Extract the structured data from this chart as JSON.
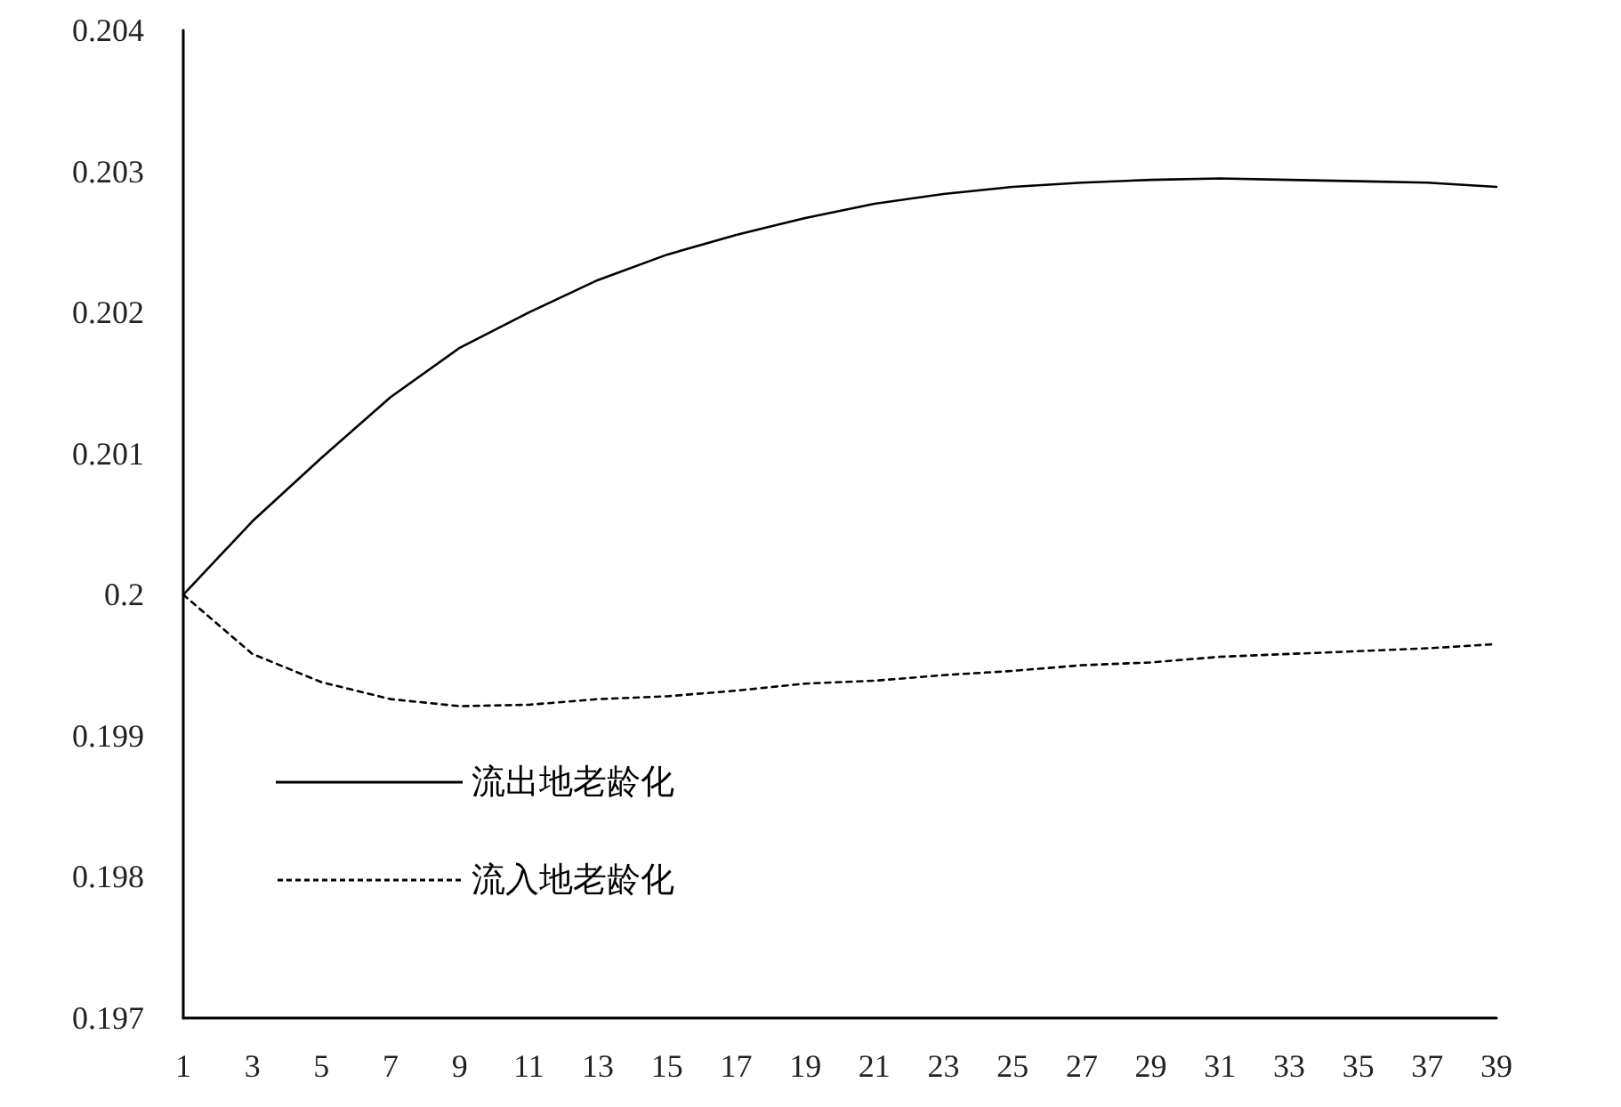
{
  "chart_data": {
    "type": "line",
    "x": [
      1,
      3,
      5,
      7,
      9,
      11,
      13,
      15,
      17,
      19,
      21,
      23,
      25,
      27,
      29,
      31,
      33,
      35,
      37,
      39
    ],
    "series": [
      {
        "name": "流出地老龄化",
        "color": "#000000",
        "line_style": "solid",
        "values": [
          0.2,
          0.20052,
          0.20097,
          0.2014,
          0.20175,
          0.202,
          0.20223,
          0.20241,
          0.20255,
          0.20267,
          0.20277,
          0.20284,
          0.20289,
          0.20292,
          0.20294,
          0.20295,
          0.20294,
          0.20293,
          0.20292,
          0.20289
        ]
      },
      {
        "name": "流入地老龄化",
        "color": "#000000",
        "line_style": "dashed",
        "values": [
          0.2,
          0.19958,
          0.19938,
          0.19926,
          0.19921,
          0.19922,
          0.19926,
          0.19928,
          0.19932,
          0.19937,
          0.19939,
          0.19943,
          0.19946,
          0.1995,
          0.19952,
          0.19956,
          0.19958,
          0.1996,
          0.19962,
          0.19965
        ]
      }
    ],
    "xlim": [
      1,
      39
    ],
    "xticks": [
      1,
      3,
      5,
      7,
      9,
      11,
      13,
      15,
      17,
      19,
      21,
      23,
      25,
      27,
      29,
      31,
      33,
      35,
      37,
      39
    ],
    "ylim": [
      0.197,
      0.204
    ],
    "yticks": [
      0.197,
      0.198,
      0.199,
      0.2,
      0.201,
      0.202,
      0.203,
      0.204
    ],
    "grid": false,
    "legend": "bottom left",
    "marker": "none"
  }
}
